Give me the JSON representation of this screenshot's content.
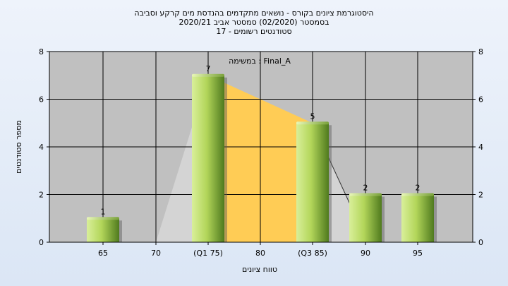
{
  "chart_data": {
    "type": "bar",
    "title_lines": [
      "היסטוגרמת ציונים בקורס - נושאים מתקדמים בהנדסת מים קרקע וסביבה",
      "בסמסטר  (02/2020)  סמסטר אביב 2020/21",
      "סטודנטים רשומים - 17"
    ],
    "subtitle": "במשימה : Final_A",
    "xlabel": "טווח ציונים",
    "ylabel": "מספר סטודנטים",
    "ylim": [
      0,
      8
    ],
    "yticks": [
      "0",
      "2",
      "4",
      "6",
      "8"
    ],
    "categories": [
      "65",
      "70",
      "(Q1 75)",
      "80",
      "(Q3 85)",
      "90",
      "95"
    ],
    "values": [
      1,
      0,
      7,
      0,
      5,
      2,
      2
    ],
    "data_labels": [
      "1",
      "",
      "7",
      "",
      "5",
      "2",
      "2"
    ],
    "grid": true,
    "colors": {
      "plot_bg": "#c0c0c0",
      "bar_light": "#d9ef9a",
      "bar_dark": "#4f7a1e",
      "iqr_fill": "#ffcc55",
      "whisker_fill": "#d6d6d6",
      "gridline": "#000000"
    }
  }
}
